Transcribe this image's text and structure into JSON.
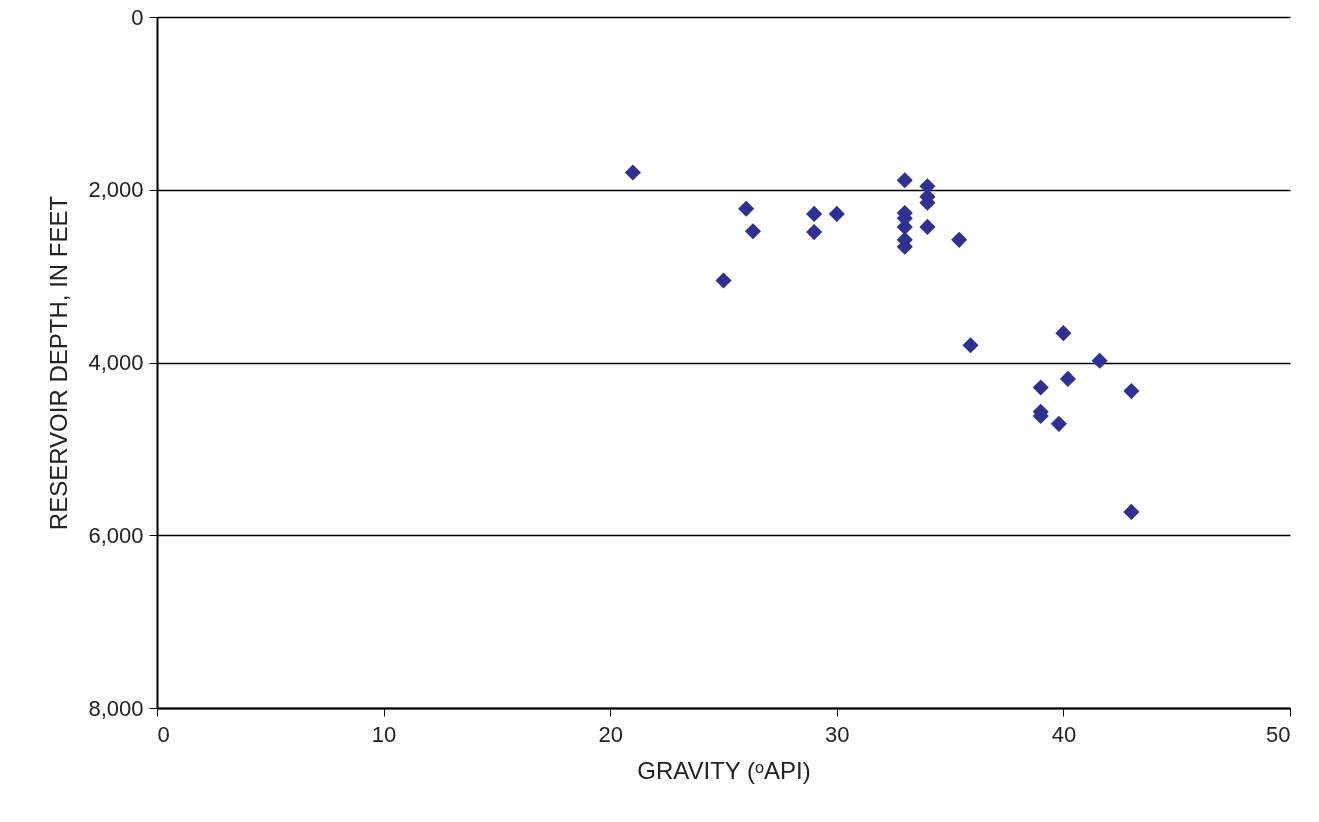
{
  "chart_data": {
    "type": "scatter",
    "xlabel": "GRAVITY (ᵒAPI)",
    "ylabel": "RESERVOIR DEPTH, IN FEET",
    "x": [
      21,
      26,
      26.3,
      25,
      29,
      29,
      30,
      33,
      33,
      33,
      33,
      33,
      33,
      34,
      34,
      34,
      34,
      35.4,
      35.9,
      40,
      41.6,
      40.2,
      39,
      43,
      39,
      39,
      39.8,
      43
    ],
    "series": [
      {
        "color": "#2e3192",
        "values": [
          1800,
          2220,
          2480,
          3050,
          2280,
          2490,
          2280,
          1890,
          2270,
          2330,
          2430,
          2580,
          2660,
          1960,
          2080,
          2150,
          2430,
          2580,
          3800,
          3660,
          3980,
          4190,
          4290,
          4330,
          4570,
          4620,
          4710,
          5730
        ]
      }
    ],
    "xlim": [
      0,
      50
    ],
    "xticks": [
      0,
      10,
      20,
      30,
      40,
      50
    ],
    "ylim": [
      8000,
      0
    ],
    "yticks": [
      {
        "value": 0,
        "label": "0"
      },
      {
        "value": 2000,
        "label": "2,000"
      },
      {
        "value": 4000,
        "label": "4,000"
      },
      {
        "value": 6000,
        "label": "6,000"
      },
      {
        "value": 8000,
        "label": "8,000"
      }
    ],
    "grid": "y",
    "marker": "diamond"
  }
}
